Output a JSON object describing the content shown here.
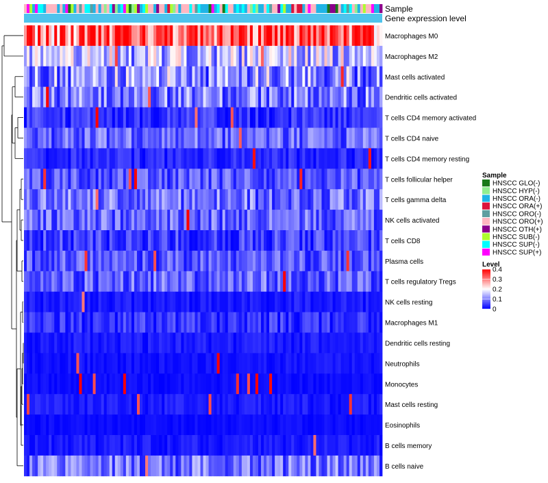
{
  "chart_data": {
    "type": "heatmap",
    "annotation_tracks": [
      "Sample",
      "Gene expression level"
    ],
    "n_samples": 130,
    "rows": [
      "Macrophages M0",
      "Macrophages M2",
      "Mast cells activated",
      "Dendritic cells activated",
      "T cells CD4 memory activated",
      "T cells CD4 naive",
      "T cells CD4 memory resting",
      "T cells follicular helper",
      "T cells gamma delta",
      "NK cells activated",
      "T cells CD8",
      "Plasma cells",
      "T cells regulatory  Tregs",
      "NK cells resting",
      "Macrophages M1",
      "Dendritic cells resting",
      "Neutrophils",
      "Monocytes",
      "Mast cells resting",
      "Eosinophils",
      "B cells memory",
      "B cells naive"
    ],
    "row_mean_level": [
      0.32,
      0.15,
      0.12,
      0.09,
      0.04,
      0.07,
      0.03,
      0.06,
      0.08,
      0.07,
      0.05,
      0.06,
      0.07,
      0.02,
      0.04,
      0.02,
      0.015,
      0.01,
      0.02,
      0.01,
      0.02,
      0.08
    ],
    "sample_legend": {
      "title": "Sample",
      "entries": [
        {
          "label": "HNSCC GLO(-)",
          "color": "#1a7a1a"
        },
        {
          "label": "HNSCC HYP(-)",
          "color": "#90ee90"
        },
        {
          "label": "HNSCC ORA(-)",
          "color": "#1fb4e6"
        },
        {
          "label": "HNSCC ORA(+)",
          "color": "#dc143c"
        },
        {
          "label": "HNSCC ORO(-)",
          "color": "#5f9ea0"
        },
        {
          "label": "HNSCC ORO(+)",
          "color": "#ffb6c1"
        },
        {
          "label": "HNSCC OTH(+)",
          "color": "#8b008b"
        },
        {
          "label": "HNSCC SUB(-)",
          "color": "#adff2f"
        },
        {
          "label": "HNSCC SUP(-)",
          "color": "#00ffff"
        },
        {
          "label": "HNSCC SUP(+)",
          "color": "#ff00ff"
        }
      ]
    },
    "level_legend": {
      "title": "Level",
      "range": [
        0,
        0.4
      ],
      "ticks": [
        "0.4",
        "0.3",
        "0.2",
        "0.1",
        "0"
      ],
      "tick_values": [
        0.4,
        0.3,
        0.2,
        0.1,
        0
      ],
      "colors": [
        "#0000ff",
        "#ffffff",
        "#ff0000"
      ]
    },
    "gene_expression_color": "#4fc3ec"
  }
}
